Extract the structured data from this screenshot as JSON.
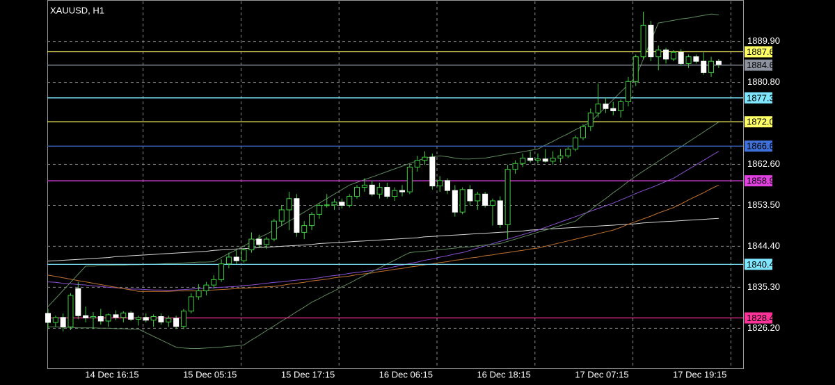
{
  "chart_data": {
    "type": "candlestick",
    "title": "XAUUSD, H1",
    "categories": [
      null,
      null,
      null,
      null,
      null,
      null,
      null,
      null,
      "14 Dec 16:15",
      null,
      null,
      null,
      null,
      null,
      null,
      null,
      null,
      null,
      null,
      null,
      null,
      "15 Dec 05:15",
      null,
      null,
      null,
      null,
      null,
      null,
      null,
      null,
      null,
      null,
      null,
      null,
      "15 Dec 17:15",
      null,
      null,
      null,
      null,
      null,
      null,
      null,
      null,
      null,
      null,
      null,
      null,
      "16 Dec 06:15",
      null,
      null,
      null,
      null,
      null,
      null,
      null,
      null,
      null,
      null,
      null,
      null,
      "16 Dec 18:15",
      null,
      null,
      null,
      null,
      null,
      null,
      null,
      null,
      null,
      null,
      null,
      null,
      "17 Dec 07:15",
      null,
      null,
      null,
      null,
      null,
      null,
      null,
      null,
      null,
      null,
      null,
      null,
      "17 Dec 19:15",
      null,
      null,
      null
    ],
    "open": [
      1829.5,
      1827.5,
      1828.6,
      1826.5,
      1835.0,
      1829.0,
      1828.5,
      1828.8,
      1827.8,
      1829.2,
      1828.6,
      1829.6,
      1828.2,
      1828.6,
      1828.0,
      1828.8,
      1827.6,
      1828.4,
      1826.6,
      1830.0,
      1833.2,
      1834.5,
      1835.8,
      1837.0,
      1840.5,
      1842.0,
      1841.2,
      1843.6,
      1846.0,
      1844.8,
      1846.0,
      1850.0,
      1852.5,
      1855.0,
      1847.5,
      1849.0,
      1851.5,
      1853.5,
      1853.6,
      1854.2,
      1853.5,
      1855.5,
      1857.5,
      1858.0,
      1856.0,
      1857.5,
      1855.5,
      1856.8,
      1856.5,
      1862.0,
      1863.5,
      1864.2,
      1857.8,
      1859.0,
      1856.8,
      1852.0,
      1857.0,
      1854.5,
      1856.0,
      1853.5,
      1854.5,
      1849.2,
      1861.5,
      1862.8,
      1864.0,
      1863.5,
      1863.8,
      1863.3,
      1864.0,
      1864.5,
      1866.0,
      1868.5,
      1871.0,
      1874.0,
      1876.0,
      1875.0,
      1874.5,
      1876.5,
      1881.0,
      1886.5,
      1893.5,
      1886.5,
      1888.0,
      1886.0,
      1887.5,
      1885.0,
      1886.5,
      1885.5,
      1883.0,
      1885.5
    ],
    "high": [
      1830.5,
      1829.0,
      1829.5,
      1834.0,
      1836.5,
      1831.0,
      1829.8,
      1830.5,
      1829.5,
      1830.2,
      1830.0,
      1830.0,
      1829.0,
      1829.5,
      1829.3,
      1829.5,
      1829.0,
      1829.0,
      1830.5,
      1834.0,
      1836.0,
      1836.5,
      1838.0,
      1841.5,
      1843.0,
      1843.5,
      1844.0,
      1847.5,
      1847.0,
      1846.5,
      1850.5,
      1853.5,
      1856.5,
      1856.0,
      1850.0,
      1852.0,
      1854.0,
      1856.0,
      1855.0,
      1855.0,
      1856.0,
      1858.0,
      1859.5,
      1859.0,
      1858.5,
      1858.5,
      1857.5,
      1858.0,
      1862.5,
      1864.5,
      1865.5,
      1865.0,
      1860.0,
      1859.5,
      1858.0,
      1857.5,
      1858.0,
      1856.5,
      1856.5,
      1855.0,
      1855.5,
      1862.5,
      1863.5,
      1865.0,
      1865.5,
      1865.0,
      1866.0,
      1865.5,
      1866.0,
      1866.5,
      1869.0,
      1871.5,
      1875.0,
      1880.5,
      1877.5,
      1876.5,
      1877.0,
      1882.0,
      1887.0,
      1896.5,
      1894.5,
      1889.0,
      1888.5,
      1888.0,
      1888.2,
      1887.0,
      1887.0,
      1887.5,
      1886.5,
      1886.0
    ],
    "low": [
      1826.0,
      1826.5,
      1825.5,
      1825.8,
      1828.2,
      1827.5,
      1826.0,
      1827.0,
      1826.5,
      1828.0,
      1827.5,
      1827.8,
      1826.8,
      1827.5,
      1826.5,
      1827.0,
      1826.5,
      1826.0,
      1826.0,
      1829.5,
      1832.5,
      1833.5,
      1835.0,
      1836.5,
      1839.5,
      1840.5,
      1840.8,
      1843.0,
      1844.0,
      1843.8,
      1845.5,
      1849.0,
      1848.0,
      1846.5,
      1846.0,
      1848.0,
      1850.5,
      1853.0,
      1852.5,
      1852.8,
      1853.0,
      1855.0,
      1856.5,
      1855.5,
      1855.0,
      1855.0,
      1854.5,
      1855.5,
      1856.0,
      1861.0,
      1862.5,
      1857.0,
      1856.5,
      1856.0,
      1851.0,
      1851.5,
      1853.5,
      1852.5,
      1853.0,
      1849.0,
      1848.5,
      1846.0,
      1860.5,
      1862.0,
      1863.0,
      1862.8,
      1863.0,
      1862.5,
      1863.0,
      1864.0,
      1865.5,
      1868.0,
      1870.0,
      1873.0,
      1874.0,
      1873.5,
      1873.0,
      1875.5,
      1880.0,
      1886.0,
      1885.5,
      1883.5,
      1885.0,
      1885.5,
      1884.5,
      1884.0,
      1885.0,
      1882.5,
      1882.0,
      1884.0
    ],
    "close": [
      1827.5,
      1828.6,
      1826.5,
      1833.5,
      1829.0,
      1828.5,
      1828.8,
      1827.8,
      1829.2,
      1828.6,
      1829.6,
      1828.2,
      1828.6,
      1828.0,
      1828.8,
      1827.6,
      1828.4,
      1826.6,
      1830.0,
      1833.2,
      1834.5,
      1835.8,
      1837.0,
      1840.5,
      1842.0,
      1841.2,
      1843.6,
      1846.0,
      1844.8,
      1846.0,
      1850.0,
      1852.5,
      1855.0,
      1847.5,
      1849.0,
      1851.5,
      1853.5,
      1853.6,
      1854.2,
      1853.5,
      1855.5,
      1857.5,
      1858.0,
      1856.0,
      1857.5,
      1855.5,
      1856.8,
      1856.5,
      1862.0,
      1863.5,
      1864.2,
      1857.8,
      1859.0,
      1856.8,
      1852.0,
      1857.0,
      1854.5,
      1856.0,
      1853.5,
      1854.5,
      1849.2,
      1861.5,
      1862.8,
      1864.0,
      1863.5,
      1863.8,
      1863.3,
      1864.0,
      1864.5,
      1866.0,
      1868.5,
      1871.0,
      1874.0,
      1876.0,
      1875.0,
      1874.5,
      1876.5,
      1881.0,
      1886.5,
      1893.5,
      1886.5,
      1888.0,
      1886.0,
      1887.5,
      1885.0,
      1886.5,
      1885.5,
      1883.0,
      1885.5,
      1884.8
    ],
    "up_color": "#3fd03f",
    "down_color": "#ffffff",
    "indicators": [
      {
        "color": "#d8d8d8",
        "values": [
          1841.1,
          1841.2,
          1841.3,
          1841.4,
          1841.5,
          1841.6,
          1841.7,
          1841.8,
          1841.9,
          1842.1,
          1842.2,
          1842.3,
          1842.4,
          1842.5,
          1842.6,
          1842.7,
          1842.8,
          1842.9,
          1843.0,
          1843.1,
          1843.2,
          1843.3,
          1843.5,
          1843.6,
          1843.7,
          1843.8,
          1843.9,
          1844.0,
          1844.1,
          1844.2,
          1844.3,
          1844.4,
          1844.5,
          1844.6,
          1844.7,
          1844.8,
          1845.0,
          1845.1,
          1845.2,
          1845.3,
          1845.4,
          1845.5,
          1845.6,
          1845.7,
          1845.8,
          1845.9,
          1846.0,
          1846.1,
          1846.2,
          1846.3,
          1846.5,
          1846.6,
          1846.7,
          1846.8,
          1846.9,
          1847.0,
          1847.1,
          1847.2,
          1847.3,
          1847.4,
          1847.5,
          1847.6,
          1847.7,
          1847.8,
          1848.0,
          1848.1,
          1848.2,
          1848.3,
          1848.4,
          1848.5,
          1848.6,
          1848.7,
          1848.8,
          1848.9,
          1849.0,
          1849.1,
          1849.2,
          1849.3,
          1849.4,
          1849.6,
          1849.7,
          1849.8,
          1849.9,
          1850.0,
          1850.1,
          1850.2,
          1850.3,
          1850.4,
          1850.5,
          1850.6
        ]
      },
      {
        "color": "#8a50d0",
        "values": [
          1836.5,
          1836.4,
          1836.2,
          1836.1,
          1835.9,
          1835.8,
          1835.6,
          1835.5,
          1835.3,
          1835.2,
          1835.0,
          1834.9,
          1834.9,
          1834.8,
          1834.7,
          1834.7,
          1834.6,
          1834.7,
          1834.8,
          1834.9,
          1835.0,
          1835.1,
          1835.2,
          1835.3,
          1835.4,
          1835.5,
          1835.7,
          1835.8,
          1836.0,
          1836.2,
          1836.4,
          1836.5,
          1836.7,
          1836.9,
          1837.0,
          1837.2,
          1837.4,
          1837.7,
          1837.9,
          1838.1,
          1838.4,
          1838.6,
          1838.8,
          1839.0,
          1839.3,
          1839.5,
          1839.9,
          1840.2,
          1840.6,
          1840.9,
          1841.3,
          1841.6,
          1842.0,
          1842.3,
          1842.7,
          1843.0,
          1843.5,
          1844.0,
          1844.5,
          1845.0,
          1845.5,
          1846.0,
          1846.5,
          1847.0,
          1847.5,
          1848.0,
          1848.6,
          1849.2,
          1849.8,
          1850.4,
          1851.0,
          1851.6,
          1852.2,
          1852.8,
          1853.4,
          1854.0,
          1854.7,
          1855.4,
          1856.1,
          1856.8,
          1857.4,
          1858.1,
          1858.8,
          1859.5,
          1860.5,
          1861.5,
          1862.5,
          1863.5,
          1864.5,
          1865.5
        ]
      },
      {
        "color": "#c0722e",
        "values": [
          1838.0,
          1837.7,
          1837.4,
          1837.1,
          1836.8,
          1836.5,
          1836.2,
          1835.9,
          1835.6,
          1835.3,
          1835.0,
          1834.7,
          1834.4,
          1834.4,
          1834.4,
          1834.4,
          1834.4,
          1834.5,
          1834.5,
          1834.5,
          1834.5,
          1834.6,
          1834.7,
          1834.8,
          1834.9,
          1835.0,
          1835.1,
          1835.2,
          1835.3,
          1835.4,
          1835.5,
          1835.7,
          1836.0,
          1836.2,
          1836.4,
          1836.7,
          1836.9,
          1837.1,
          1837.4,
          1837.6,
          1837.8,
          1838.1,
          1838.3,
          1838.5,
          1838.8,
          1839.0,
          1839.3,
          1839.5,
          1839.8,
          1840.0,
          1840.3,
          1840.5,
          1840.8,
          1841.0,
          1841.3,
          1841.5,
          1841.8,
          1842.0,
          1842.3,
          1842.5,
          1842.8,
          1843.0,
          1843.3,
          1843.5,
          1843.8,
          1844.0,
          1844.4,
          1844.8,
          1845.2,
          1845.6,
          1846.0,
          1846.4,
          1846.8,
          1847.2,
          1847.6,
          1848.0,
          1848.6,
          1849.3,
          1849.9,
          1850.5,
          1851.1,
          1851.8,
          1852.4,
          1853.0,
          1853.8,
          1854.7,
          1855.5,
          1856.3,
          1857.2,
          1858.0
        ]
      },
      {
        "color": "#5f8a5f",
        "values": [
          1831.0,
          1832.8,
          1834.6,
          1836.4,
          1838.2,
          1840.0,
          1840.0,
          1840.1,
          1840.1,
          1840.2,
          1840.2,
          1840.3,
          1840.3,
          1840.4,
          1840.4,
          1840.5,
          1840.6,
          1840.6,
          1840.7,
          1840.8,
          1840.9,
          1840.9,
          1841.0,
          1841.9,
          1842.8,
          1843.6,
          1844.5,
          1845.4,
          1846.3,
          1847.1,
          1848.0,
          1849.0,
          1850.0,
          1851.0,
          1852.0,
          1853.0,
          1854.0,
          1855.0,
          1856.0,
          1857.0,
          1858.0,
          1858.6,
          1859.2,
          1859.8,
          1860.4,
          1861.0,
          1861.6,
          1862.2,
          1862.8,
          1863.4,
          1864.0,
          1864.3,
          1864.5,
          1864.3,
          1864.0,
          1863.8,
          1863.8,
          1863.9,
          1864.0,
          1864.3,
          1864.6,
          1864.9,
          1865.1,
          1865.4,
          1865.7,
          1866.0,
          1866.9,
          1867.7,
          1868.6,
          1869.4,
          1870.3,
          1871.1,
          1872.0,
          1873.7,
          1875.3,
          1877.0,
          1878.7,
          1880.3,
          1882.0,
          1886.0,
          1890.0,
          1894.0,
          1894.3,
          1894.6,
          1894.9,
          1895.1,
          1895.4,
          1895.7,
          1896.0,
          1895.8
        ]
      },
      {
        "color": "#5f8a5f",
        "values": [
          1826.5,
          1826.5,
          1826.4,
          1826.4,
          1826.3,
          1826.3,
          1826.3,
          1826.2,
          1826.2,
          1826.1,
          1826.1,
          1826.0,
          1826.0,
          1825.2,
          1824.4,
          1823.6,
          1822.8,
          1822.0,
          1821.8,
          1821.7,
          1821.7,
          1821.8,
          1821.9,
          1822.0,
          1822.2,
          1822.3,
          1822.5,
          1823.6,
          1824.6,
          1825.7,
          1826.7,
          1827.8,
          1828.8,
          1829.9,
          1830.9,
          1832.0,
          1832.8,
          1833.7,
          1834.5,
          1835.4,
          1836.2,
          1837.1,
          1837.9,
          1838.8,
          1839.6,
          1840.5,
          1841.3,
          1842.2,
          1843.0,
          1843.2,
          1843.3,
          1843.5,
          1843.7,
          1843.8,
          1844.0,
          1844.2,
          1844.3,
          1844.5,
          1844.7,
          1844.8,
          1845.0,
          1845.5,
          1846.0,
          1846.5,
          1847.0,
          1847.5,
          1848.0,
          1848.5,
          1849.0,
          1849.5,
          1850.0,
          1851.3,
          1852.5,
          1853.8,
          1855.0,
          1856.3,
          1857.5,
          1858.8,
          1860.0,
          1861.1,
          1862.2,
          1863.3,
          1864.4,
          1865.5,
          1866.5,
          1867.6,
          1868.7,
          1869.8,
          1870.9,
          1872.0
        ]
      }
    ],
    "levels": [
      {
        "value": 1887.61,
        "color": "#ffff66"
      },
      {
        "value": 1884.65,
        "color": "#8c939e"
      },
      {
        "value": 1877.37,
        "color": "#7fe6ff"
      },
      {
        "value": 1872.06,
        "color": "#ffff66"
      },
      {
        "value": 1866.65,
        "color": "#3f6fd8"
      },
      {
        "value": 1858.95,
        "color": "#e040e0"
      },
      {
        "value": 1840.4,
        "label": "1840.40",
        "color": "#7fe6ff"
      },
      {
        "value": 1828.49,
        "color": "#ff3399"
      }
    ],
    "ylim": [
      1817.3,
      1898.8
    ],
    "yticks": [
      {
        "value": 1889.9,
        "label": "1889.90"
      },
      {
        "value": 1880.8,
        "label": "1880.80"
      },
      {
        "value": 1862.6,
        "label": "1862.60"
      },
      {
        "value": 1853.5,
        "label": "1853.50"
      },
      {
        "value": 1844.4,
        "label": "1844.40"
      },
      {
        "value": 1835.3,
        "label": "1835.30"
      },
      {
        "value": 1826.2,
        "label": "1826.20"
      }
    ],
    "grid": true
  }
}
